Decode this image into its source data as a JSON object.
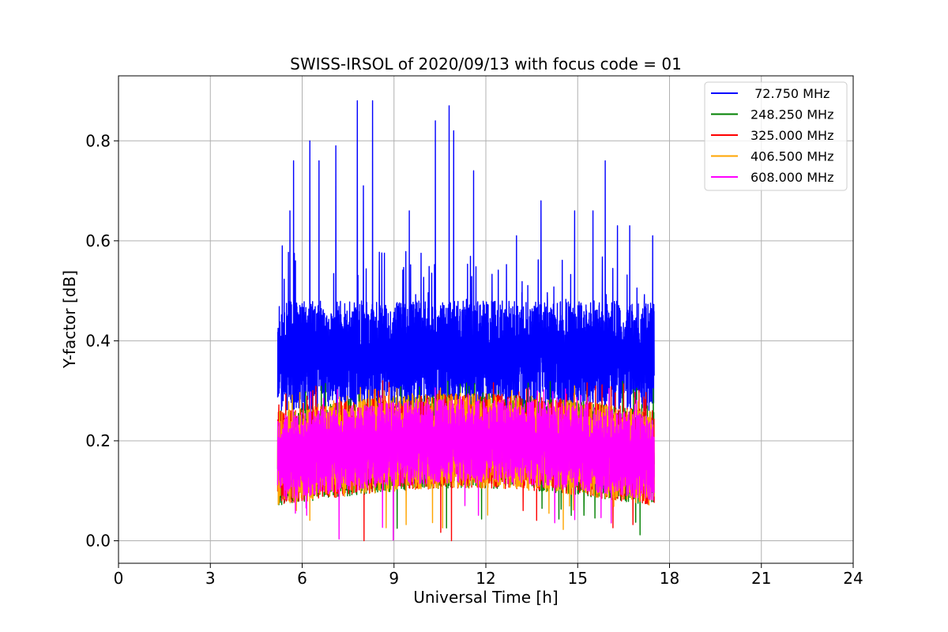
{
  "chart_data": {
    "type": "line",
    "title": "SWISS-IRSOL of 2020/09/13 with focus code = 01",
    "xlabel": "Universal Time [h]",
    "ylabel": "Y-factor [dB]",
    "xlim": [
      0,
      24
    ],
    "ylim": [
      -0.045,
      0.93
    ],
    "xticks": [
      0,
      3,
      6,
      9,
      12,
      15,
      18,
      21,
      24
    ],
    "yticks": [
      0.0,
      0.2,
      0.4,
      0.6,
      0.8
    ],
    "xtick_labels": [
      "0",
      "3",
      "6",
      "9",
      "12",
      "15",
      "18",
      "21",
      "24"
    ],
    "ytick_labels": [
      "0.0",
      "0.2",
      "0.4",
      "0.6",
      "0.8"
    ],
    "grid": true,
    "legend_position": "top-right",
    "x_range_of_data": [
      5.2,
      17.5
    ],
    "series": [
      {
        "name": " 72.750 MHz",
        "label": "72.750 MHz",
        "color": "#0000ff",
        "baseline": 0.36,
        "band": [
          0.26,
          0.48
        ],
        "peaks": [
          {
            "x": 5.35,
            "y": 0.59
          },
          {
            "x": 5.6,
            "y": 0.66
          },
          {
            "x": 5.72,
            "y": 0.76
          },
          {
            "x": 6.25,
            "y": 0.8
          },
          {
            "x": 6.55,
            "y": 0.76
          },
          {
            "x": 7.1,
            "y": 0.79
          },
          {
            "x": 7.8,
            "y": 0.88
          },
          {
            "x": 8.3,
            "y": 0.88
          },
          {
            "x": 8.0,
            "y": 0.71
          },
          {
            "x": 9.5,
            "y": 0.66
          },
          {
            "x": 10.35,
            "y": 0.84
          },
          {
            "x": 10.8,
            "y": 0.87
          },
          {
            "x": 10.95,
            "y": 0.82
          },
          {
            "x": 11.6,
            "y": 0.74
          },
          {
            "x": 13.0,
            "y": 0.61
          },
          {
            "x": 13.8,
            "y": 0.68
          },
          {
            "x": 14.9,
            "y": 0.66
          },
          {
            "x": 15.5,
            "y": 0.66
          },
          {
            "x": 15.9,
            "y": 0.76
          },
          {
            "x": 16.3,
            "y": 0.63
          },
          {
            "x": 16.7,
            "y": 0.63
          },
          {
            "x": 17.45,
            "y": 0.61
          }
        ],
        "min": 0.0
      },
      {
        "name": "248.250 MHz",
        "label": "248.250 MHz",
        "color": "#008000",
        "baseline": 0.16,
        "band": [
          0.07,
          0.26
        ],
        "max": 0.32,
        "min": 0.0
      },
      {
        "name": "325.000 MHz",
        "label": "325.000 MHz",
        "color": "#ff0000",
        "baseline": 0.16,
        "band": [
          0.07,
          0.26
        ],
        "max": 0.32,
        "min": 0.0
      },
      {
        "name": "406.500 MHz",
        "label": "406.500 MHz",
        "color": "#ffa500",
        "baseline": 0.16,
        "band": [
          0.07,
          0.26
        ],
        "max": 0.31,
        "min": 0.0
      },
      {
        "name": "608.000 MHz",
        "label": "608.000 MHz",
        "color": "#ff00ff",
        "baseline": 0.155,
        "band": [
          0.08,
          0.25
        ],
        "max": 0.31,
        "min": 0.0
      }
    ]
  }
}
